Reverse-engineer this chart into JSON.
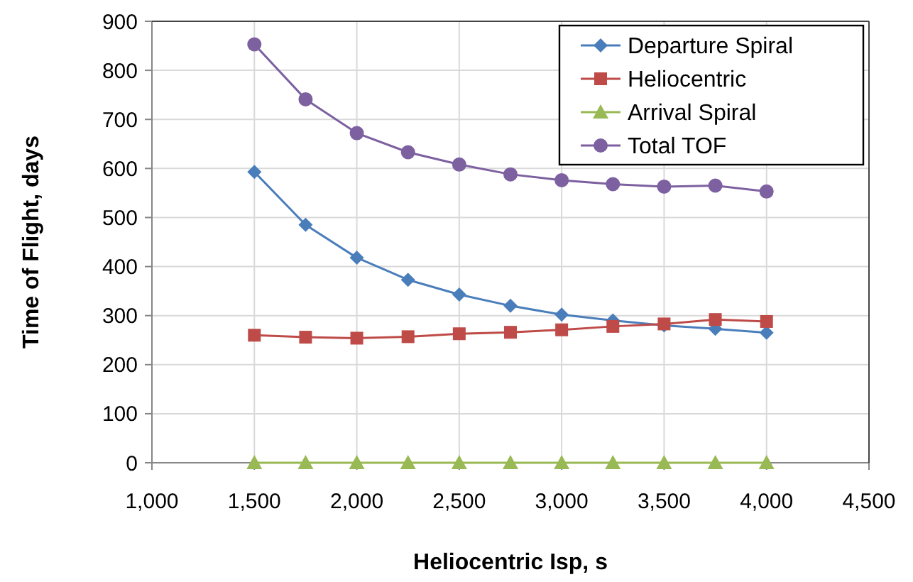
{
  "chart_data": {
    "type": "line",
    "xlabel": "Heliocentric Isp, s",
    "ylabel": "Time of Flight, days",
    "x": [
      1500,
      1750,
      2000,
      2250,
      2500,
      2750,
      3000,
      3250,
      3500,
      3750,
      4000
    ],
    "series": [
      {
        "name": "Departure Spiral",
        "color": "#4a7ebb",
        "marker": "diamond",
        "values": [
          593,
          485,
          418,
          373,
          343,
          320,
          302,
          290,
          280,
          273,
          265
        ]
      },
      {
        "name": "Heliocentric",
        "color": "#be4b48",
        "marker": "square",
        "values": [
          260,
          256,
          254,
          257,
          263,
          266,
          271,
          278,
          283,
          292,
          288
        ]
      },
      {
        "name": "Arrival Spiral",
        "color": "#98b954",
        "marker": "triangle",
        "values": [
          0,
          0,
          0,
          0,
          0,
          0,
          0,
          0,
          0,
          0,
          0
        ]
      },
      {
        "name": "Total TOF",
        "color": "#7d60a0",
        "marker": "circle",
        "values": [
          853,
          741,
          672,
          633,
          608,
          588,
          576,
          568,
          563,
          565,
          553
        ]
      }
    ],
    "xlim": [
      1000,
      4500
    ],
    "xticks": [
      {
        "value": 1000,
        "label": "1,000"
      },
      {
        "value": 1500,
        "label": "1,500"
      },
      {
        "value": 2000,
        "label": "2,000"
      },
      {
        "value": 2500,
        "label": "2,500"
      },
      {
        "value": 3000,
        "label": "3,000"
      },
      {
        "value": 3500,
        "label": "3,500"
      },
      {
        "value": 4000,
        "label": "4,000"
      },
      {
        "value": 4500,
        "label": "4,500"
      }
    ],
    "ylim": [
      0,
      900
    ],
    "yticks": [
      0,
      100,
      200,
      300,
      400,
      500,
      600,
      700,
      800,
      900
    ],
    "grid": true,
    "legend": "top right"
  }
}
